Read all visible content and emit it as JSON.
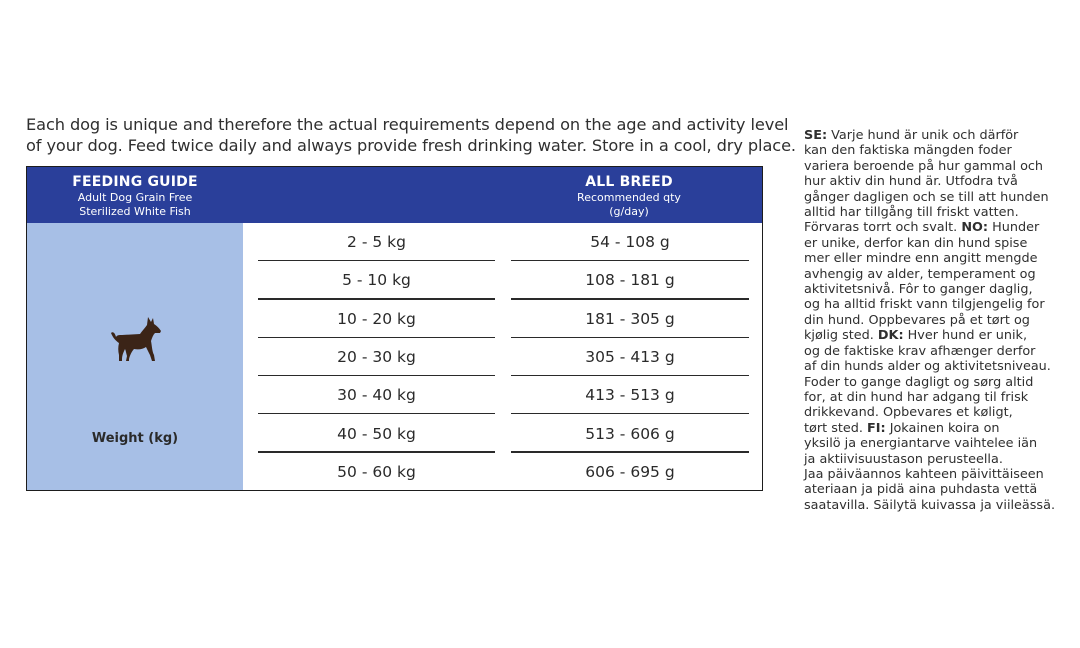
{
  "intro": {
    "line1": "Each dog is unique and therefore the actual requirements depend on the age and activity level",
    "line2": "of your dog. Feed twice daily and always provide fresh drinking water. Store in a cool, dry place."
  },
  "table": {
    "left_header": {
      "title": "FEEDING GUIDE",
      "line1": "Adult Dog Grain Free",
      "line2": "Sterilized White Fish"
    },
    "right_header": {
      "title": "ALL BREED",
      "line1": "Recommended qty",
      "line2": "(g/day)"
    },
    "weight_label": "Weight (kg)",
    "icon": "dog-icon",
    "rows": [
      {
        "weight": "2 - 5 kg",
        "qty": "54 - 108 g"
      },
      {
        "weight": "5 - 10 kg",
        "qty": "108 - 181 g"
      },
      {
        "weight": "10 - 20 kg",
        "qty": "181 - 305 g"
      },
      {
        "weight": "20 - 30 kg",
        "qty": "305 - 413 g"
      },
      {
        "weight": "30 - 40 kg",
        "qty": "413 - 513 g"
      },
      {
        "weight": "40 - 50 kg",
        "qty": "513 - 606 g"
      },
      {
        "weight": "50 - 60 kg",
        "qty": "606 - 695 g"
      }
    ]
  },
  "colors": {
    "header_blue": "#2a3f9a",
    "weight_column": "#a7bfe6",
    "text": "#2a2a2a"
  },
  "side_text": [
    [
      {
        "b": "SE:"
      },
      {
        "t": " Varje hund är unik och därför"
      }
    ],
    [
      {
        "t": "kan den faktiska mängden foder"
      }
    ],
    [
      {
        "t": "variera beroende på hur gammal och"
      }
    ],
    [
      {
        "t": "hur aktiv din hund är. Utfodra två"
      }
    ],
    [
      {
        "t": "gånger dagligen och se till att hunden"
      }
    ],
    [
      {
        "t": "alltid har tillgång till friskt vatten."
      }
    ],
    [
      {
        "t": "Förvaras torrt och svalt. "
      },
      {
        "b": "NO:"
      },
      {
        "t": " Hunder"
      }
    ],
    [
      {
        "t": "er unike, derfor kan din hund spise"
      }
    ],
    [
      {
        "t": "mer eller mindre enn angitt mengde"
      }
    ],
    [
      {
        "t": "avhengig av alder, temperament og"
      }
    ],
    [
      {
        "t": "aktivitetsnivå. Fôr to ganger daglig,"
      }
    ],
    [
      {
        "t": "og ha alltid friskt vann tilgjengelig for"
      }
    ],
    [
      {
        "t": "din hund. Oppbevares på et tørt og"
      }
    ],
    [
      {
        "t": "kjølig sted. "
      },
      {
        "b": "DK:"
      },
      {
        "t": " Hver hund er unik,"
      }
    ],
    [
      {
        "t": "og de faktiske krav afhænger derfor"
      }
    ],
    [
      {
        "t": "af din hunds alder og aktivitetsniveau."
      }
    ],
    [
      {
        "t": "Foder to gange dagligt og sørg altid"
      }
    ],
    [
      {
        "t": "for, at din hund har adgang til frisk"
      }
    ],
    [
      {
        "t": "drikkevand. Opbevares et køligt,"
      }
    ],
    [
      {
        "t": "tørt sted. "
      },
      {
        "b": "FI:"
      },
      {
        "t": " Jokainen koira on"
      }
    ],
    [
      {
        "t": "yksilö ja energiantarve vaihtelee iän"
      }
    ],
    [
      {
        "t": "ja aktiivisuustason perusteella."
      }
    ],
    [
      {
        "t": "Jaa päiväannos kahteen päivittäiseen"
      }
    ],
    [
      {
        "t": "ateriaan ja pidä aina puhdasta vettä"
      }
    ],
    [
      {
        "t": "saatavilla. Säilytä kuivassa ja viileässä."
      }
    ]
  ]
}
